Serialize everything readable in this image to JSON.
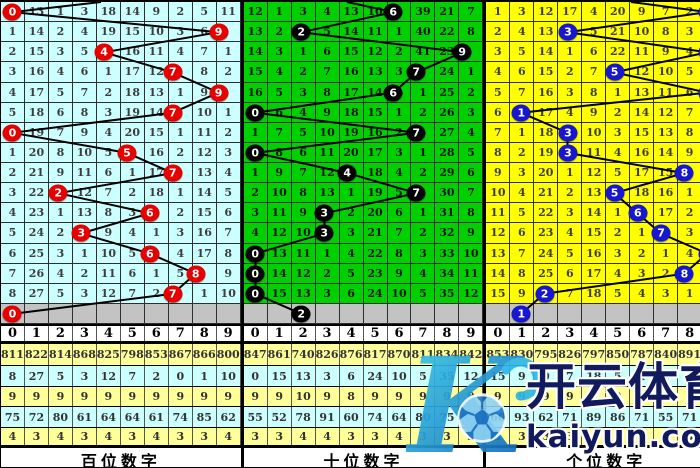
{
  "chart_data": {
    "type": "table",
    "column_headers": [
      "0",
      "1",
      "2",
      "3",
      "4",
      "5",
      "6",
      "7",
      "8",
      "9"
    ],
    "stats_row_colors": [
      "#FFFF99",
      "#CCFFFF",
      "#FFFF99",
      "#CCFFFF",
      "#FFFF99"
    ],
    "panels": [
      {
        "title": "百位数字",
        "colors": {
          "bg": "#CCFFFF",
          "text": "#3d3d3d",
          "circle": "#e60000"
        },
        "rows": [
          {
            "cells": [
              "0",
              "13",
              "1",
              "3",
              "18",
              "14",
              "9",
              "2",
              "5",
              "11"
            ],
            "hit": 0
          },
          {
            "cells": [
              "1",
              "14",
              "2",
              "4",
              "19",
              "15",
              "10",
              "3",
              "6",
              "9"
            ],
            "hit": 9
          },
          {
            "cells": [
              "2",
              "15",
              "3",
              "5",
              "4",
              "16",
              "11",
              "4",
              "7",
              "1"
            ],
            "hit": 4
          },
          {
            "cells": [
              "3",
              "16",
              "4",
              "6",
              "1",
              "17",
              "12",
              "7",
              "8",
              "2"
            ],
            "hit": 7
          },
          {
            "cells": [
              "4",
              "17",
              "5",
              "7",
              "2",
              "18",
              "13",
              "1",
              "9",
              "9"
            ],
            "hit": 9
          },
          {
            "cells": [
              "5",
              "18",
              "6",
              "8",
              "3",
              "19",
              "14",
              "7",
              "10",
              "1"
            ],
            "hit": 7
          },
          {
            "cells": [
              "0",
              "19",
              "7",
              "9",
              "4",
              "20",
              "15",
              "1",
              "11",
              "2"
            ],
            "hit": 0
          },
          {
            "cells": [
              "1",
              "20",
              "8",
              "10",
              "5",
              "5",
              "16",
              "2",
              "12",
              "3"
            ],
            "hit": 5
          },
          {
            "cells": [
              "2",
              "21",
              "9",
              "11",
              "6",
              "1",
              "17",
              "7",
              "13",
              "4"
            ],
            "hit": 7
          },
          {
            "cells": [
              "3",
              "22",
              "2",
              "12",
              "7",
              "2",
              "18",
              "1",
              "14",
              "5"
            ],
            "hit": 2
          },
          {
            "cells": [
              "4",
              "23",
              "1",
              "13",
              "8",
              "3",
              "6",
              "2",
              "15",
              "6"
            ],
            "hit": 6
          },
          {
            "cells": [
              "5",
              "24",
              "2",
              "3",
              "9",
              "4",
              "1",
              "3",
              "16",
              "7"
            ],
            "hit": 3
          },
          {
            "cells": [
              "6",
              "25",
              "3",
              "1",
              "10",
              "5",
              "6",
              "4",
              "17",
              "8"
            ],
            "hit": 6
          },
          {
            "cells": [
              "7",
              "26",
              "4",
              "2",
              "11",
              "6",
              "1",
              "5",
              "8",
              "9"
            ],
            "hit": 8
          },
          {
            "cells": [
              "8",
              "27",
              "5",
              "3",
              "12",
              "7",
              "2",
              "7",
              "1",
              "10"
            ],
            "hit": 7
          }
        ],
        "next": {
          "hit": 0
        },
        "stats": [
          [
            "811",
            "822",
            "814",
            "868",
            "825",
            "798",
            "853",
            "867",
            "866",
            "800"
          ],
          [
            "8",
            "27",
            "5",
            "3",
            "12",
            "7",
            "2",
            "0",
            "1",
            "10"
          ],
          [
            "9",
            "9",
            "9",
            "9",
            "9",
            "9",
            "9",
            "9",
            "9",
            "9"
          ],
          [
            "75",
            "72",
            "80",
            "61",
            "64",
            "64",
            "61",
            "74",
            "85",
            "62"
          ],
          [
            "4",
            "3",
            "4",
            "3",
            "4",
            "3",
            "4",
            "3",
            "3",
            "4"
          ]
        ]
      },
      {
        "title": "十位数字",
        "colors": {
          "bg": "#00d000",
          "text": "#161616",
          "circle": "#000000"
        },
        "rows": [
          {
            "cells": [
              "12",
              "1",
              "3",
              "4",
              "13",
              "10",
              "6",
              "39",
              "21",
              "7"
            ],
            "hit": 6
          },
          {
            "cells": [
              "13",
              "2",
              "2",
              "5",
              "14",
              "11",
              "1",
              "40",
              "22",
              "8"
            ],
            "hit": 2
          },
          {
            "cells": [
              "14",
              "3",
              "1",
              "6",
              "15",
              "12",
              "2",
              "41",
              "23",
              "9"
            ],
            "hit": 9
          },
          {
            "cells": [
              "15",
              "4",
              "2",
              "7",
              "16",
              "13",
              "3",
              "7",
              "24",
              "1"
            ],
            "hit": 7
          },
          {
            "cells": [
              "16",
              "5",
              "3",
              "8",
              "17",
              "14",
              "6",
              "1",
              "25",
              "2"
            ],
            "hit": 6
          },
          {
            "cells": [
              "0",
              "6",
              "4",
              "9",
              "18",
              "15",
              "1",
              "2",
              "26",
              "3"
            ],
            "hit": 0
          },
          {
            "cells": [
              "1",
              "7",
              "5",
              "10",
              "19",
              "16",
              "2",
              "7",
              "27",
              "4"
            ],
            "hit": 7
          },
          {
            "cells": [
              "0",
              "8",
              "6",
              "11",
              "20",
              "17",
              "3",
              "1",
              "28",
              "5"
            ],
            "hit": 0
          },
          {
            "cells": [
              "1",
              "9",
              "7",
              "12",
              "4",
              "18",
              "4",
              "2",
              "29",
              "6"
            ],
            "hit": 4
          },
          {
            "cells": [
              "2",
              "10",
              "8",
              "13",
              "1",
              "19",
              "5",
              "7",
              "30",
              "7"
            ],
            "hit": 7
          },
          {
            "cells": [
              "3",
              "11",
              "9",
              "3",
              "2",
              "20",
              "6",
              "1",
              "31",
              "8"
            ],
            "hit": 3
          },
          {
            "cells": [
              "4",
              "12",
              "10",
              "3",
              "3",
              "21",
              "7",
              "2",
              "32",
              "9"
            ],
            "hit": 3
          },
          {
            "cells": [
              "0",
              "13",
              "11",
              "1",
              "4",
              "22",
              "8",
              "3",
              "33",
              "10"
            ],
            "hit": 0
          },
          {
            "cells": [
              "0",
              "14",
              "12",
              "2",
              "5",
              "23",
              "9",
              "4",
              "34",
              "11"
            ],
            "hit": 0
          },
          {
            "cells": [
              "0",
              "15",
              "13",
              "3",
              "6",
              "24",
              "10",
              "5",
              "35",
              "12"
            ],
            "hit": 0
          }
        ],
        "next": {
          "hit": 2
        },
        "stats": [
          [
            "847",
            "861",
            "740",
            "826",
            "876",
            "817",
            "870",
            "811",
            "834",
            "842"
          ],
          [
            "0",
            "15",
            "13",
            "3",
            "6",
            "24",
            "10",
            "5",
            "35",
            "12"
          ],
          [
            "9",
            "9",
            "10",
            "9",
            "8",
            "9",
            "9",
            "9",
            "9",
            "9"
          ],
          [
            "55",
            "52",
            "78",
            "91",
            "60",
            "74",
            "64",
            "80",
            "75",
            "73"
          ],
          [
            "3",
            "3",
            "4",
            "4",
            "3",
            "3",
            "4",
            "3",
            "3",
            "3"
          ]
        ]
      },
      {
        "title": "个位数字",
        "colors": {
          "bg": "#FFFF00",
          "text": "#3d3d3d",
          "circle": "#1717cf"
        },
        "rows": [
          {
            "cells": [
              "1",
              "3",
              "12",
              "17",
              "4",
              "20",
              "9",
              "7",
              "2",
              "9"
            ],
            "hit": 9
          },
          {
            "cells": [
              "2",
              "4",
              "13",
              "3",
              "5",
              "21",
              "10",
              "8",
              "3",
              "1"
            ],
            "hit": 3
          },
          {
            "cells": [
              "3",
              "5",
              "14",
              "1",
              "6",
              "22",
              "11",
              "9",
              "4",
              "9"
            ],
            "hit": 9
          },
          {
            "cells": [
              "4",
              "6",
              "15",
              "2",
              "7",
              "5",
              "12",
              "10",
              "5",
              "1"
            ],
            "hit": 5
          },
          {
            "cells": [
              "5",
              "7",
              "16",
              "3",
              "8",
              "1",
              "13",
              "11",
              "6",
              "9"
            ],
            "hit": 9
          },
          {
            "cells": [
              "6",
              "1",
              "17",
              "4",
              "9",
              "2",
              "14",
              "12",
              "7",
              "1"
            ],
            "hit": 1
          },
          {
            "cells": [
              "7",
              "1",
              "18",
              "3",
              "10",
              "3",
              "15",
              "13",
              "8",
              "2"
            ],
            "hit": 3
          },
          {
            "cells": [
              "8",
              "2",
              "19",
              "3",
              "11",
              "4",
              "16",
              "14",
              "9",
              "3"
            ],
            "hit": 3
          },
          {
            "cells": [
              "9",
              "3",
              "20",
              "1",
              "12",
              "5",
              "17",
              "15",
              "8",
              "4"
            ],
            "hit": 8
          },
          {
            "cells": [
              "10",
              "4",
              "21",
              "2",
              "13",
              "5",
              "18",
              "16",
              "1",
              "5"
            ],
            "hit": 5
          },
          {
            "cells": [
              "11",
              "5",
              "22",
              "3",
              "14",
              "1",
              "6",
              "17",
              "2",
              "6"
            ],
            "hit": 6
          },
          {
            "cells": [
              "12",
              "6",
              "23",
              "4",
              "15",
              "2",
              "1",
              "7",
              "3",
              "7"
            ],
            "hit": 7
          },
          {
            "cells": [
              "13",
              "7",
              "24",
              "5",
              "16",
              "3",
              "2",
              "1",
              "4",
              "9"
            ],
            "hit": 9
          },
          {
            "cells": [
              "14",
              "8",
              "25",
              "6",
              "17",
              "4",
              "3",
              "2",
              "8",
              "1"
            ],
            "hit": 8
          },
          {
            "cells": [
              "15",
              "9",
              "2",
              "7",
              "18",
              "5",
              "4",
              "3",
              "1",
              "2"
            ],
            "hit": 2
          }
        ],
        "next": {
          "hit": 1
        },
        "stats": [
          [
            "853",
            "830",
            "795",
            "826",
            "797",
            "850",
            "787",
            "840",
            "891",
            "855"
          ],
          [
            "15",
            "9",
            "0",
            "7",
            "18",
            "5",
            "4",
            "3",
            "1",
            "2"
          ],
          [
            "9",
            "9",
            "9",
            "9",
            "9",
            "9",
            "9",
            "9",
            "9",
            "9"
          ],
          [
            "60",
            "93",
            "62",
            "71",
            "89",
            "86",
            "71",
            "55",
            "71",
            "54"
          ],
          [
            "4",
            "3",
            "3",
            "3",
            "4",
            "3",
            "4",
            "3",
            "3",
            "4"
          ]
        ]
      }
    ]
  },
  "watermark": {
    "brand_letter": "K",
    "brand_name": "开云体育",
    "brand_url": "kaiyun.com"
  }
}
